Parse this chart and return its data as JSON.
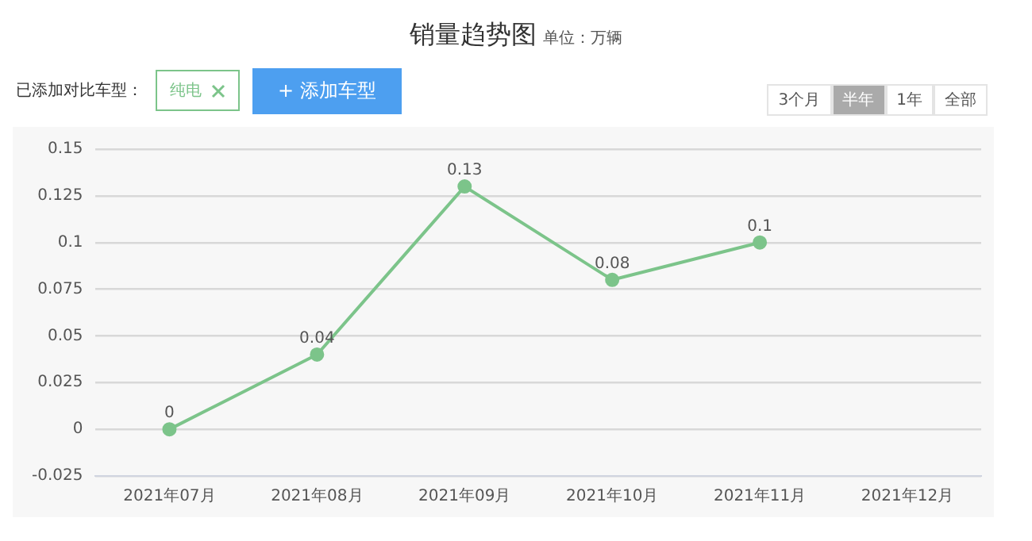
{
  "chart_data": {
    "type": "line",
    "title": "销量趋势图",
    "subtitle": "单位：万辆",
    "annotations": [
      "已添加对比车型：",
      "纯电",
      "+ 添加车型",
      "3个月",
      "半年",
      "1年",
      "全部"
    ],
    "categories": [
      "2021年07月",
      "2021年08月",
      "2021年09月",
      "2021年10月",
      "2021年11月",
      "2021年12月"
    ],
    "series": [
      {
        "color": "#7cc48a",
        "values": [
          0,
          0.04,
          0.13,
          0.08,
          0.1,
          null
        ]
      }
    ],
    "ylim": [
      -0.025,
      0.15
    ],
    "yticks": [
      -0.025,
      0,
      0.025,
      0.05,
      0.075,
      0.1,
      0.125,
      0.15
    ],
    "grid": "y",
    "legend": false,
    "marker": "circle",
    "line_style": "solid",
    "data_labels": true
  }
}
